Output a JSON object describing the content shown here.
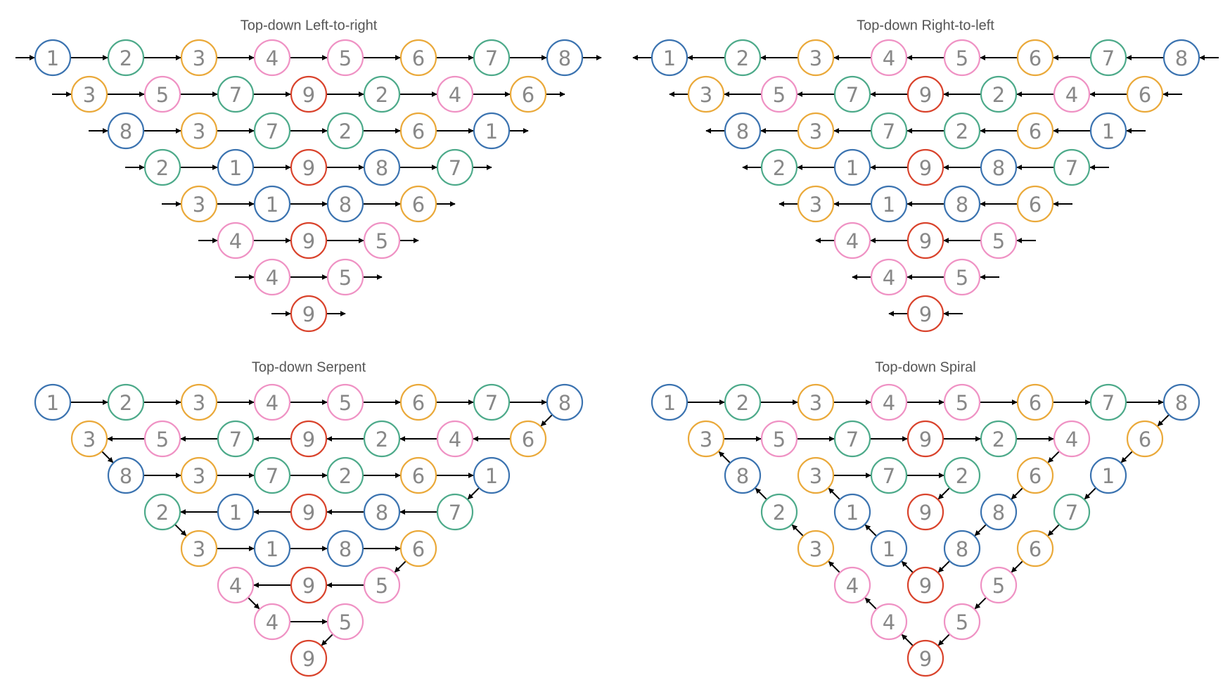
{
  "panels": [
    {
      "title": "Top-down Left-to-right",
      "rows": [
        [
          1,
          2,
          3,
          4,
          5,
          6,
          7,
          8
        ],
        [
          3,
          5,
          7,
          9,
          2,
          4,
          6
        ],
        [
          8,
          3,
          7,
          2,
          6,
          1
        ],
        [
          2,
          1,
          9,
          8,
          7
        ],
        [
          3,
          1,
          8,
          6
        ],
        [
          4,
          9,
          5
        ],
        [
          4,
          5
        ],
        [
          9
        ]
      ]
    },
    {
      "title": "Top-down Right-to-left",
      "rows": [
        [
          1,
          2,
          3,
          4,
          5,
          6,
          7,
          8
        ],
        [
          3,
          5,
          7,
          9,
          2,
          4,
          6
        ],
        [
          8,
          3,
          7,
          2,
          6,
          1
        ],
        [
          2,
          1,
          9,
          8,
          7
        ],
        [
          3,
          1,
          8,
          6
        ],
        [
          4,
          9,
          5
        ],
        [
          4,
          5
        ],
        [
          9
        ]
      ]
    },
    {
      "title": "Top-down Serpent",
      "rows": [
        [
          1,
          2,
          3,
          4,
          5,
          6,
          7,
          8
        ],
        [
          3,
          5,
          7,
          9,
          2,
          4,
          6
        ],
        [
          8,
          3,
          7,
          2,
          6,
          1
        ],
        [
          2,
          1,
          9,
          8,
          7
        ],
        [
          3,
          1,
          8,
          6
        ],
        [
          4,
          9,
          5
        ],
        [
          4,
          5
        ],
        [
          9
        ]
      ]
    },
    {
      "title": "Top-down Spiral",
      "rows": [
        [
          1,
          2,
          3,
          4,
          5,
          6,
          7,
          8
        ],
        [
          3,
          5,
          7,
          9,
          2,
          4,
          6
        ],
        [
          8,
          3,
          7,
          2,
          6,
          1
        ],
        [
          2,
          1,
          9,
          8,
          7
        ],
        [
          3,
          1,
          8,
          6
        ],
        [
          4,
          9,
          5
        ],
        [
          4,
          5
        ],
        [
          9
        ]
      ]
    }
  ],
  "colors": {
    "1": "#3b73b0",
    "8": "#3b73b0",
    "2": "#4daa8a",
    "7": "#4daa8a",
    "3": "#eaa93a",
    "6": "#eaa93a",
    "4": "#ef92c4",
    "5": "#ef92c4",
    "9": "#d9432c"
  }
}
